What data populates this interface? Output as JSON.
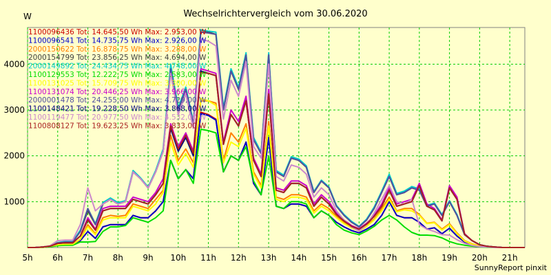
{
  "chart_data": {
    "type": "line",
    "title": "Wechselrichtervergleich vom 30.06.2020",
    "ylabel": "W",
    "xlabel": "",
    "credit": "SunnyReport pinxit",
    "x_ticks": [
      "5h",
      "6h",
      "7h",
      "8h",
      "9h",
      "10h",
      "11h",
      "12h",
      "13h",
      "14h",
      "15h",
      "16h",
      "17h",
      "18h",
      "19h",
      "20h",
      "21h"
    ],
    "y_ticks": [
      1000,
      2000,
      3000,
      4000
    ],
    "xlim": [
      5,
      21.5
    ],
    "ylim": [
      0,
      4800
    ],
    "grid": true,
    "legend_position": "top-left",
    "x": [
      5,
      5.25,
      5.5,
      5.75,
      6,
      6.25,
      6.5,
      6.75,
      7,
      7.25,
      7.5,
      7.75,
      8,
      8.25,
      8.5,
      8.75,
      9,
      9.25,
      9.5,
      9.75,
      10,
      10.25,
      10.5,
      10.75,
      11,
      11.25,
      11.5,
      11.75,
      12,
      12.25,
      12.5,
      12.75,
      13,
      13.25,
      13.5,
      13.75,
      14,
      14.25,
      14.5,
      14.75,
      15,
      15.25,
      15.5,
      15.75,
      16,
      16.25,
      16.5,
      16.75,
      17,
      17.25,
      17.5,
      17.75,
      18,
      18.25,
      18.5,
      18.75,
      19,
      19.25,
      19.5,
      19.75,
      20,
      20.25,
      20.5,
      20.75,
      21,
      21.25,
      21.5
    ],
    "series": [
      {
        "name": "1100096436 Tot: 14.645,50 Wh Max: 2.953,00 W",
        "color": "#CC0000",
        "values": [
          0,
          0,
          5,
          20,
          50,
          60,
          60,
          150,
          350,
          200,
          450,
          500,
          500,
          500,
          700,
          650,
          650,
          800,
          1000,
          1900,
          1500,
          1700,
          1500,
          2950,
          2900,
          2800,
          1650,
          2000,
          1900,
          2300,
          1400,
          1150,
          2400,
          900,
          850,
          950,
          950,
          900,
          650,
          800,
          700,
          550,
          450,
          370,
          320,
          400,
          500,
          700,
          1000,
          700,
          650,
          650,
          550,
          400,
          430,
          300,
          420,
          250,
          120,
          60,
          30,
          15,
          5,
          0,
          0,
          0,
          0
        ],
        "labelColor": "#CC0000"
      },
      {
        "name": "1100096541 Tot: 14.735,75 Wh Max: 2.926,00 W",
        "color": "#0000CC",
        "values": [
          0,
          0,
          5,
          20,
          50,
          60,
          60,
          150,
          350,
          200,
          450,
          500,
          500,
          500,
          700,
          650,
          650,
          800,
          1000,
          1900,
          1500,
          1700,
          1500,
          2920,
          2880,
          2780,
          1650,
          2000,
          1900,
          2300,
          1400,
          1150,
          2400,
          900,
          850,
          950,
          950,
          900,
          650,
          800,
          700,
          550,
          450,
          370,
          320,
          400,
          500,
          700,
          1000,
          700,
          650,
          650,
          550,
          400,
          430,
          300,
          420,
          250,
          120,
          60,
          30,
          15,
          5,
          0,
          0,
          0,
          0
        ],
        "labelColor": "#0000CC"
      },
      {
        "name": "2000150622 Tot: 16.878,75 Wh Max: 3.288,00 W",
        "color": "#FF8000",
        "values": [
          0,
          0,
          5,
          25,
          60,
          70,
          70,
          180,
          500,
          300,
          650,
          700,
          680,
          700,
          950,
          900,
          850,
          1050,
          1250,
          2450,
          1900,
          2150,
          1850,
          3200,
          3200,
          3150,
          1900,
          2500,
          2300,
          2700,
          1650,
          1350,
          2750,
          1100,
          1050,
          1150,
          1150,
          1100,
          800,
          950,
          850,
          680,
          550,
          450,
          380,
          480,
          620,
          850,
          1100,
          800,
          850,
          850,
          720,
          530,
          550,
          400,
          520,
          320,
          150,
          80,
          35,
          20,
          5,
          0,
          0,
          0,
          0
        ],
        "labelColor": "#FF8000"
      },
      {
        "name": "2000154799 Tot: 23.856,25 Wh Max: 4.694,00 W",
        "color": "#404040",
        "values": [
          0,
          0,
          10,
          30,
          100,
          120,
          120,
          350,
          800,
          500,
          950,
          1050,
          950,
          1000,
          1650,
          1500,
          1300,
          1650,
          2100,
          3900,
          3000,
          3450,
          2700,
          4750,
          4700,
          4650,
          3000,
          3850,
          3450,
          4200,
          2350,
          2050,
          4200,
          1650,
          1550,
          1950,
          1900,
          1750,
          1200,
          1450,
          1300,
          900,
          700,
          550,
          450,
          600,
          850,
          1200,
          1550,
          1150,
          1200,
          1300,
          1250,
          900,
          950,
          700,
          1000,
          700,
          280,
          150,
          60,
          25,
          10,
          0,
          0,
          0,
          0
        ],
        "labelColor": "#404040"
      },
      {
        "name": "2000149892 Tot: 24.434,75 Wh Max: 4.748,00 W",
        "color": "#00CCCC",
        "values": [
          0,
          0,
          10,
          35,
          110,
          130,
          130,
          380,
          850,
          520,
          980,
          1080,
          980,
          1020,
          1680,
          1520,
          1320,
          1680,
          2150,
          4000,
          3050,
          3500,
          2750,
          4750,
          4720,
          4700,
          3050,
          3900,
          3500,
          4250,
          2400,
          2080,
          4250,
          1680,
          1580,
          1980,
          1930,
          1780,
          1220,
          1470,
          1320,
          920,
          720,
          570,
          460,
          620,
          880,
          1230,
          1600,
          1180,
          1230,
          1330,
          1280,
          920,
          970,
          720,
          1020,
          720,
          290,
          150,
          60,
          25,
          10,
          0,
          0,
          0,
          0
        ],
        "labelColor": "#00CCCC"
      },
      {
        "name": "1100129553 Tot: 12.222,75 Wh Max: 2.583,00 W",
        "color": "#00DD00",
        "values": [
          0,
          0,
          5,
          15,
          40,
          50,
          50,
          120,
          120,
          130,
          350,
          450,
          450,
          480,
          650,
          600,
          550,
          650,
          800,
          1900,
          1500,
          1700,
          1400,
          2580,
          2550,
          2500,
          1650,
          2000,
          1900,
          2200,
          1450,
          1150,
          2000,
          900,
          850,
          1000,
          1000,
          950,
          650,
          800,
          700,
          500,
          380,
          320,
          280,
          360,
          460,
          600,
          700,
          600,
          450,
          330,
          270,
          270,
          260,
          210,
          130,
          80,
          50,
          30,
          15,
          5,
          0,
          0,
          0,
          0,
          0
        ],
        "labelColor": "#00DD00"
      },
      {
        "name": "1100131025 Tot: 15.709,75 Wh Max: 3.300,00 W",
        "color": "#FFFF00",
        "values": [
          0,
          0,
          5,
          25,
          60,
          70,
          70,
          180,
          450,
          280,
          600,
          650,
          650,
          650,
          900,
          850,
          800,
          950,
          1200,
          2300,
          1800,
          2050,
          1750,
          3250,
          3200,
          3100,
          1850,
          2300,
          2200,
          2600,
          1600,
          1300,
          2650,
          1050,
          1000,
          1100,
          1100,
          1050,
          750,
          900,
          800,
          650,
          520,
          430,
          360,
          460,
          600,
          800,
          1050,
          780,
          820,
          800,
          700,
          520,
          540,
          380,
          500,
          300,
          140,
          70,
          30,
          15,
          5,
          0,
          0,
          0,
          0
        ],
        "labelColor": "#FFFF00"
      },
      {
        "name": "1100131074 Tot: 20.446,25 Wh Max: 3.966,00 W",
        "color": "#CC00CC",
        "values": [
          0,
          0,
          10,
          30,
          90,
          100,
          100,
          250,
          650,
          400,
          850,
          900,
          900,
          900,
          1100,
          1050,
          1000,
          1200,
          1500,
          2700,
          2200,
          2500,
          2100,
          3900,
          3850,
          3800,
          2300,
          3000,
          2750,
          3300,
          1950,
          1600,
          3450,
          1300,
          1250,
          1450,
          1450,
          1350,
          950,
          1150,
          1000,
          750,
          600,
          480,
          410,
          530,
          700,
          950,
          1300,
          950,
          1000,
          1050,
          1400,
          950,
          850,
          600,
          1350,
          1100,
          300,
          150,
          60,
          25,
          10,
          0,
          0,
          0,
          0
        ],
        "labelColor": "#CC00CC"
      },
      {
        "name": "2000001478 Tot: 24.255,00 Wh Max: 4.729,00 W",
        "color": "#5050A0",
        "values": [
          0,
          0,
          10,
          30,
          100,
          120,
          120,
          350,
          850,
          500,
          950,
          1050,
          950,
          1000,
          1650,
          1500,
          1300,
          1650,
          2100,
          3900,
          3000,
          3450,
          2700,
          4700,
          4680,
          4650,
          3000,
          3850,
          3450,
          4200,
          2350,
          2050,
          4200,
          1650,
          1550,
          1950,
          1900,
          1750,
          1200,
          1450,
          1300,
          900,
          700,
          550,
          450,
          600,
          850,
          1200,
          1550,
          1150,
          1200,
          1300,
          1250,
          900,
          950,
          700,
          1000,
          700,
          280,
          150,
          60,
          25,
          10,
          0,
          0,
          0,
          0
        ],
        "labelColor": "#5050A0"
      },
      {
        "name": "1100148421 Tot: 19.228,50 Wh Max: 3.868,00 W",
        "color": "#000080",
        "values": [
          0,
          0,
          10,
          30,
          90,
          100,
          100,
          250,
          600,
          380,
          800,
          850,
          850,
          850,
          1050,
          1000,
          950,
          1150,
          1400,
          2600,
          2100,
          2400,
          2000,
          3850,
          3800,
          3750,
          2250,
          2900,
          2650,
          3200,
          1900,
          1550,
          3350,
          1250,
          1200,
          1400,
          1400,
          1300,
          900,
          1100,
          950,
          720,
          580,
          460,
          400,
          510,
          680,
          900,
          1250,
          900,
          950,
          1000,
          1350,
          900,
          820,
          580,
          1300,
          1050,
          290,
          150,
          60,
          25,
          10,
          0,
          0,
          0,
          0
        ],
        "labelColor": "#000080"
      },
      {
        "name": "1100119477 Tot: 20.977,50 Wh Max: 4.532,00 W",
        "color": "#CC88CC",
        "values": [
          0,
          0,
          10,
          40,
          150,
          160,
          160,
          500,
          1300,
          800,
          950,
          1050,
          950,
          1000,
          1650,
          1500,
          1300,
          1650,
          2100,
          3800,
          2900,
          3350,
          2600,
          4550,
          4500,
          4400,
          2800,
          3650,
          3300,
          4050,
          2200,
          1950,
          4000,
          1550,
          1450,
          1800,
          1750,
          1600,
          1100,
          1300,
          1150,
          800,
          600,
          450,
          360,
          500,
          750,
          1050,
          1350,
          1000,
          950,
          1050,
          500,
          400,
          350,
          280,
          270,
          170,
          90,
          45,
          20,
          10,
          0,
          0,
          0,
          0,
          0
        ],
        "labelColor": "#CC88CC"
      },
      {
        "name": "1100808127 Tot: 19.623,25 Wh Max: 3.833,00 W",
        "color": "#AA2222",
        "values": [
          0,
          0,
          10,
          30,
          90,
          100,
          100,
          250,
          600,
          380,
          800,
          850,
          850,
          850,
          1050,
          1000,
          950,
          1150,
          1400,
          2650,
          2150,
          2450,
          2050,
          3820,
          3800,
          3750,
          2250,
          2900,
          2650,
          3200,
          1900,
          1550,
          3350,
          1250,
          1200,
          1400,
          1400,
          1300,
          900,
          1100,
          950,
          720,
          580,
          460,
          400,
          510,
          680,
          900,
          1250,
          900,
          950,
          1000,
          1350,
          900,
          820,
          580,
          1300,
          1050,
          290,
          150,
          60,
          25,
          10,
          0,
          0,
          0,
          0
        ],
        "labelColor": "#AA2222"
      }
    ]
  }
}
